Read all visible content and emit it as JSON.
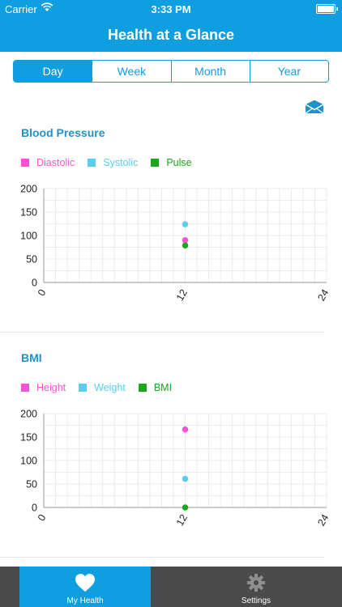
{
  "status_bar": {
    "carrier": "Carrier",
    "time": "3:33 PM"
  },
  "nav": {
    "title": "Health at a Glance"
  },
  "segments": [
    {
      "label": "Day",
      "active": true
    },
    {
      "label": "Week",
      "active": false
    },
    {
      "label": "Month",
      "active": false
    },
    {
      "label": "Year",
      "active": false
    }
  ],
  "colors": {
    "accent": "#0f9ee0",
    "title_blue": "#1f93c9",
    "magenta": "#ff4fdc",
    "cyan": "#5ccdf2",
    "green": "#1aa81a",
    "tabbar": "#4a4a4a"
  },
  "icons": {
    "share": "envelope-icon",
    "my_health": "heart-icon",
    "settings": "gear-icon"
  },
  "sections": {
    "blood_pressure": {
      "title": "Blood Pressure",
      "legend": [
        "Diastolic",
        "Systolic",
        "Pulse"
      ]
    },
    "bmi": {
      "title": "BMI",
      "legend": [
        "Height",
        "Weight",
        "BMI"
      ]
    }
  },
  "chart_data": [
    {
      "type": "scatter",
      "title": "Blood Pressure",
      "x_ticks": [
        "0",
        "12",
        "24"
      ],
      "y_ticks": [
        "0",
        "50",
        "100",
        "150",
        "200"
      ],
      "xlim": [
        0,
        24
      ],
      "ylim": [
        0,
        200
      ],
      "grid": true,
      "legend_position": "top-left",
      "series": [
        {
          "name": "Diastolic",
          "color": "#ff4fdc",
          "points": [
            [
              12,
              90
            ]
          ]
        },
        {
          "name": "Systolic",
          "color": "#5ccdf2",
          "points": [
            [
              12,
              124
            ]
          ]
        },
        {
          "name": "Pulse",
          "color": "#1aa81a",
          "points": [
            [
              12,
              79
            ]
          ]
        }
      ]
    },
    {
      "type": "scatter",
      "title": "BMI",
      "x_ticks": [
        "0",
        "12",
        "24"
      ],
      "y_ticks": [
        "0",
        "50",
        "100",
        "150",
        "200"
      ],
      "xlim": [
        0,
        24
      ],
      "ylim": [
        0,
        200
      ],
      "grid": true,
      "legend_position": "top-left",
      "series": [
        {
          "name": "Height",
          "color": "#ff4fdc",
          "points": [
            [
              12,
              166
            ]
          ]
        },
        {
          "name": "Weight",
          "color": "#5ccdf2",
          "points": [
            [
              12,
              61
            ]
          ]
        },
        {
          "name": "BMI",
          "color": "#1aa81a",
          "points": [
            [
              12,
              0
            ]
          ]
        }
      ]
    }
  ],
  "tabs": [
    {
      "label": "My Health",
      "active": true
    },
    {
      "label": "Settings",
      "active": false
    }
  ]
}
